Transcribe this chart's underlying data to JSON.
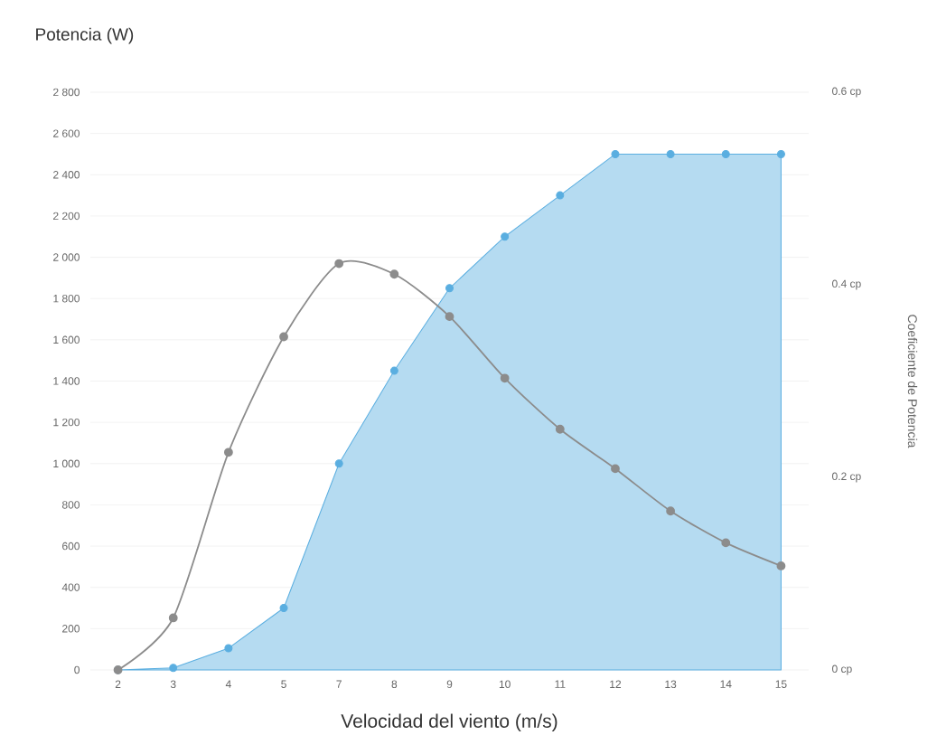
{
  "chart_data": {
    "type": "area",
    "xlabel": "Velocidad del viento (m/s)",
    "ylabel": "Potencia (W)",
    "y2label": "Coeficiente de Potencia",
    "categories": [
      "2",
      "3",
      "4",
      "5",
      "7",
      "8",
      "9",
      "10",
      "11",
      "12",
      "13",
      "14",
      "15"
    ],
    "series": [
      {
        "color": "#5aaee0",
        "values": [
          0,
          10,
          105,
          300,
          1000,
          1450,
          1850,
          2100,
          2300,
          2500,
          2500,
          2500,
          2500
        ]
      },
      {
        "type": "line",
        "axis": "y2",
        "color": "#8c8c8c",
        "values": [
          0,
          0.054,
          0.226,
          0.346,
          0.422,
          0.411,
          0.367,
          0.303,
          0.25,
          0.209,
          0.165,
          0.132,
          0.108
        ]
      }
    ],
    "ylim": [
      0,
      2800
    ],
    "yticks": [
      0,
      {
        "value": 200,
        "label": "200"
      },
      {
        "value": 400,
        "label": "400"
      },
      {
        "value": 600,
        "label": "600"
      },
      {
        "value": 800,
        "label": "800"
      },
      {
        "value": 1000,
        "label": "1 000"
      },
      {
        "value": 1200,
        "label": "1 200"
      },
      {
        "value": 1400,
        "label": "1 400"
      },
      {
        "value": 1600,
        "label": "1 600"
      },
      {
        "value": 1800,
        "label": "1 800"
      },
      {
        "value": 2000,
        "label": "2 000"
      },
      {
        "value": 2200,
        "label": "2 200"
      },
      {
        "value": 2400,
        "label": "2 400"
      },
      {
        "value": 2600,
        "label": "2 600"
      },
      {
        "value": 2800,
        "label": "2 800"
      }
    ],
    "y2lim": [
      0,
      0.6
    ],
    "y2ticks": [
      {
        "value": 0,
        "label": "0 cp"
      },
      {
        "value": 0.2,
        "label": "0.2 cp"
      },
      {
        "value": 0.4,
        "label": "0.4 cp"
      },
      {
        "value": 0.6,
        "label": "0.6 cp"
      }
    ],
    "grid": "y",
    "marker": "circle"
  }
}
